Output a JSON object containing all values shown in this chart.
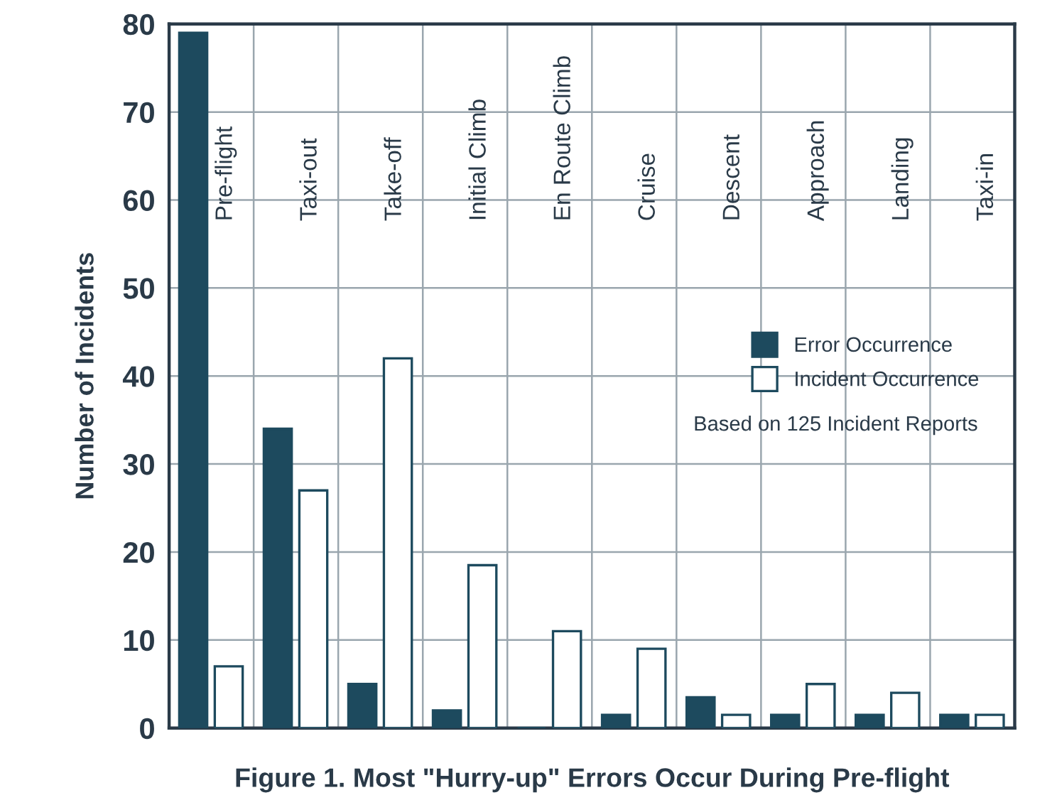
{
  "chart_data": {
    "type": "bar",
    "title": "Figure 1. Most \"Hurry-up\" Errors Occur During Pre-flight",
    "ylabel": "Number of Incidents",
    "categories": [
      "Pre-flight",
      "Taxi-out",
      "Take-off",
      "Initial Climb",
      "En Route Climb",
      "Cruise",
      "Descent",
      "Approach",
      "Landing",
      "Taxi-in"
    ],
    "series": [
      {
        "name": "Error Occurrence",
        "color": "#1d4a5e",
        "values": [
          79,
          34,
          5,
          2,
          0,
          1.5,
          3.5,
          1.5,
          1.5,
          1.5
        ]
      },
      {
        "name": "Incident Occurrence",
        "color": "#ffffff",
        "values": [
          7,
          27,
          42,
          18.5,
          11,
          9,
          1.5,
          5,
          4,
          1.5
        ]
      }
    ],
    "ylim": [
      0,
      80
    ],
    "yticks": [
      0,
      10,
      20,
      30,
      40,
      50,
      60,
      70,
      80
    ],
    "annotations": [
      "Based on 125 Incident Reports"
    ],
    "grid": true,
    "legend": "right"
  }
}
